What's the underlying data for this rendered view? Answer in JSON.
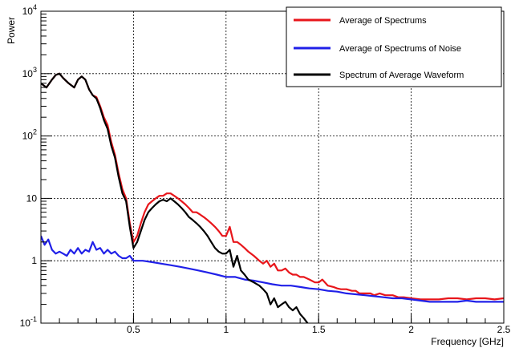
{
  "chart_data": {
    "type": "line",
    "title": "",
    "xlabel": "Frequency [GHz]",
    "ylabel": "Power",
    "xlim": [
      0.0,
      2.5
    ],
    "ylim": [
      0.1,
      10000
    ],
    "yscale": "log",
    "grid": true,
    "legend_position": "top-right",
    "x_ticks": [
      0.5,
      1.0,
      1.5,
      2.0,
      2.5
    ],
    "x_tick_labels": [
      "0.5",
      "1",
      "1.5",
      "2",
      "2.5"
    ],
    "y_ticks": [
      0.1,
      1,
      10,
      100,
      1000,
      10000
    ],
    "y_tick_labels": [
      {
        "base": "10",
        "exp": "-1"
      },
      {
        "base": "1",
        "exp": ""
      },
      {
        "base": "10",
        "exp": ""
      },
      {
        "base": "10",
        "exp": "2"
      },
      {
        "base": "10",
        "exp": "3"
      },
      {
        "base": "10",
        "exp": "4"
      }
    ],
    "series": [
      {
        "name": "Average of Spectrums",
        "color": "#e8161b",
        "points": [
          [
            0.0,
            700
          ],
          [
            0.03,
            600
          ],
          [
            0.06,
            800
          ],
          [
            0.08,
            950
          ],
          [
            0.1,
            1000
          ],
          [
            0.12,
            850
          ],
          [
            0.15,
            700
          ],
          [
            0.18,
            600
          ],
          [
            0.2,
            800
          ],
          [
            0.22,
            900
          ],
          [
            0.24,
            800
          ],
          [
            0.26,
            560
          ],
          [
            0.28,
            450
          ],
          [
            0.3,
            420
          ],
          [
            0.32,
            300
          ],
          [
            0.34,
            200
          ],
          [
            0.36,
            150
          ],
          [
            0.38,
            80
          ],
          [
            0.4,
            50
          ],
          [
            0.42,
            25
          ],
          [
            0.44,
            14
          ],
          [
            0.46,
            10
          ],
          [
            0.48,
            4
          ],
          [
            0.5,
            2.0
          ],
          [
            0.52,
            2.5
          ],
          [
            0.54,
            4
          ],
          [
            0.56,
            6
          ],
          [
            0.58,
            8
          ],
          [
            0.6,
            9
          ],
          [
            0.62,
            10
          ],
          [
            0.64,
            11
          ],
          [
            0.66,
            11
          ],
          [
            0.68,
            12
          ],
          [
            0.7,
            12
          ],
          [
            0.72,
            11
          ],
          [
            0.74,
            10
          ],
          [
            0.76,
            9
          ],
          [
            0.78,
            8
          ],
          [
            0.8,
            7
          ],
          [
            0.82,
            6
          ],
          [
            0.84,
            6
          ],
          [
            0.86,
            5.5
          ],
          [
            0.88,
            5
          ],
          [
            0.9,
            4.5
          ],
          [
            0.92,
            4
          ],
          [
            0.94,
            3.5
          ],
          [
            0.96,
            3
          ],
          [
            0.98,
            2.5
          ],
          [
            1.0,
            2.5
          ],
          [
            1.02,
            3.5
          ],
          [
            1.04,
            2.0
          ],
          [
            1.06,
            2.0
          ],
          [
            1.08,
            1.8
          ],
          [
            1.1,
            1.6
          ],
          [
            1.12,
            1.4
          ],
          [
            1.15,
            1.2
          ],
          [
            1.18,
            1.0
          ],
          [
            1.2,
            0.9
          ],
          [
            1.22,
            1.0
          ],
          [
            1.24,
            0.8
          ],
          [
            1.26,
            0.9
          ],
          [
            1.28,
            0.7
          ],
          [
            1.3,
            0.7
          ],
          [
            1.32,
            0.75
          ],
          [
            1.34,
            0.65
          ],
          [
            1.36,
            0.6
          ],
          [
            1.38,
            0.6
          ],
          [
            1.4,
            0.55
          ],
          [
            1.42,
            0.55
          ],
          [
            1.45,
            0.5
          ],
          [
            1.48,
            0.45
          ],
          [
            1.5,
            0.45
          ],
          [
            1.52,
            0.5
          ],
          [
            1.55,
            0.4
          ],
          [
            1.58,
            0.38
          ],
          [
            1.6,
            0.36
          ],
          [
            1.62,
            0.35
          ],
          [
            1.65,
            0.35
          ],
          [
            1.68,
            0.33
          ],
          [
            1.7,
            0.33
          ],
          [
            1.72,
            0.3
          ],
          [
            1.75,
            0.3
          ],
          [
            1.78,
            0.3
          ],
          [
            1.8,
            0.28
          ],
          [
            1.83,
            0.3
          ],
          [
            1.86,
            0.28
          ],
          [
            1.9,
            0.28
          ],
          [
            1.93,
            0.26
          ],
          [
            1.96,
            0.26
          ],
          [
            2.0,
            0.25
          ],
          [
            2.05,
            0.24
          ],
          [
            2.1,
            0.24
          ],
          [
            2.15,
            0.24
          ],
          [
            2.2,
            0.25
          ],
          [
            2.25,
            0.25
          ],
          [
            2.3,
            0.24
          ],
          [
            2.35,
            0.25
          ],
          [
            2.4,
            0.25
          ],
          [
            2.45,
            0.24
          ],
          [
            2.5,
            0.25
          ]
        ]
      },
      {
        "name": "Average of Spectrums of Noise",
        "color": "#2020e8",
        "points": [
          [
            0.0,
            2.5
          ],
          [
            0.02,
            1.8
          ],
          [
            0.04,
            2.2
          ],
          [
            0.06,
            1.5
          ],
          [
            0.08,
            1.3
          ],
          [
            0.1,
            1.4
          ],
          [
            0.12,
            1.3
          ],
          [
            0.14,
            1.2
          ],
          [
            0.16,
            1.5
          ],
          [
            0.18,
            1.3
          ],
          [
            0.2,
            1.6
          ],
          [
            0.22,
            1.3
          ],
          [
            0.24,
            1.5
          ],
          [
            0.26,
            1.4
          ],
          [
            0.28,
            2.0
          ],
          [
            0.3,
            1.5
          ],
          [
            0.32,
            1.6
          ],
          [
            0.34,
            1.3
          ],
          [
            0.36,
            1.5
          ],
          [
            0.38,
            1.3
          ],
          [
            0.4,
            1.4
          ],
          [
            0.42,
            1.2
          ],
          [
            0.44,
            1.1
          ],
          [
            0.46,
            1.1
          ],
          [
            0.48,
            1.2
          ],
          [
            0.5,
            1.0
          ],
          [
            0.55,
            1.0
          ],
          [
            0.6,
            0.95
          ],
          [
            0.65,
            0.9
          ],
          [
            0.7,
            0.85
          ],
          [
            0.75,
            0.8
          ],
          [
            0.8,
            0.75
          ],
          [
            0.85,
            0.7
          ],
          [
            0.9,
            0.65
          ],
          [
            0.95,
            0.6
          ],
          [
            1.0,
            0.55
          ],
          [
            1.05,
            0.55
          ],
          [
            1.1,
            0.5
          ],
          [
            1.15,
            0.48
          ],
          [
            1.2,
            0.45
          ],
          [
            1.25,
            0.42
          ],
          [
            1.3,
            0.4
          ],
          [
            1.35,
            0.4
          ],
          [
            1.4,
            0.38
          ],
          [
            1.45,
            0.36
          ],
          [
            1.5,
            0.35
          ],
          [
            1.55,
            0.33
          ],
          [
            1.6,
            0.32
          ],
          [
            1.65,
            0.3
          ],
          [
            1.7,
            0.29
          ],
          [
            1.75,
            0.28
          ],
          [
            1.8,
            0.27
          ],
          [
            1.85,
            0.26
          ],
          [
            1.9,
            0.25
          ],
          [
            1.95,
            0.25
          ],
          [
            2.0,
            0.24
          ],
          [
            2.05,
            0.23
          ],
          [
            2.1,
            0.22
          ],
          [
            2.15,
            0.22
          ],
          [
            2.2,
            0.22
          ],
          [
            2.25,
            0.22
          ],
          [
            2.3,
            0.23
          ],
          [
            2.35,
            0.22
          ],
          [
            2.4,
            0.22
          ],
          [
            2.45,
            0.22
          ],
          [
            2.5,
            0.22
          ]
        ]
      },
      {
        "name": "Spectrum of Average Waveform",
        "color": "#000000",
        "points": [
          [
            0.0,
            700
          ],
          [
            0.03,
            600
          ],
          [
            0.06,
            800
          ],
          [
            0.08,
            950
          ],
          [
            0.1,
            1000
          ],
          [
            0.12,
            850
          ],
          [
            0.15,
            700
          ],
          [
            0.18,
            600
          ],
          [
            0.2,
            800
          ],
          [
            0.22,
            900
          ],
          [
            0.24,
            800
          ],
          [
            0.26,
            560
          ],
          [
            0.28,
            450
          ],
          [
            0.3,
            400
          ],
          [
            0.32,
            280
          ],
          [
            0.34,
            180
          ],
          [
            0.36,
            130
          ],
          [
            0.38,
            70
          ],
          [
            0.4,
            45
          ],
          [
            0.42,
            22
          ],
          [
            0.44,
            12
          ],
          [
            0.46,
            9
          ],
          [
            0.48,
            3.5
          ],
          [
            0.5,
            1.6
          ],
          [
            0.52,
            2.0
          ],
          [
            0.54,
            3
          ],
          [
            0.56,
            4.5
          ],
          [
            0.58,
            6
          ],
          [
            0.6,
            7
          ],
          [
            0.62,
            8
          ],
          [
            0.64,
            9
          ],
          [
            0.66,
            9.5
          ],
          [
            0.68,
            9
          ],
          [
            0.7,
            10
          ],
          [
            0.72,
            9
          ],
          [
            0.74,
            8
          ],
          [
            0.76,
            7
          ],
          [
            0.78,
            6
          ],
          [
            0.8,
            5
          ],
          [
            0.82,
            4.5
          ],
          [
            0.84,
            4
          ],
          [
            0.86,
            3.5
          ],
          [
            0.88,
            3
          ],
          [
            0.9,
            2.5
          ],
          [
            0.92,
            2.0
          ],
          [
            0.94,
            1.6
          ],
          [
            0.96,
            1.4
          ],
          [
            0.98,
            1.3
          ],
          [
            1.0,
            1.3
          ],
          [
            1.02,
            1.5
          ],
          [
            1.04,
            0.8
          ],
          [
            1.06,
            1.2
          ],
          [
            1.08,
            0.7
          ],
          [
            1.1,
            0.6
          ],
          [
            1.12,
            0.5
          ],
          [
            1.15,
            0.45
          ],
          [
            1.18,
            0.4
          ],
          [
            1.2,
            0.35
          ],
          [
            1.22,
            0.3
          ],
          [
            1.24,
            0.2
          ],
          [
            1.26,
            0.25
          ],
          [
            1.28,
            0.18
          ],
          [
            1.3,
            0.2
          ],
          [
            1.32,
            0.22
          ],
          [
            1.34,
            0.18
          ],
          [
            1.36,
            0.16
          ],
          [
            1.38,
            0.18
          ],
          [
            1.4,
            0.14
          ],
          [
            1.42,
            0.12
          ],
          [
            1.44,
            0.1
          ]
        ]
      }
    ]
  }
}
